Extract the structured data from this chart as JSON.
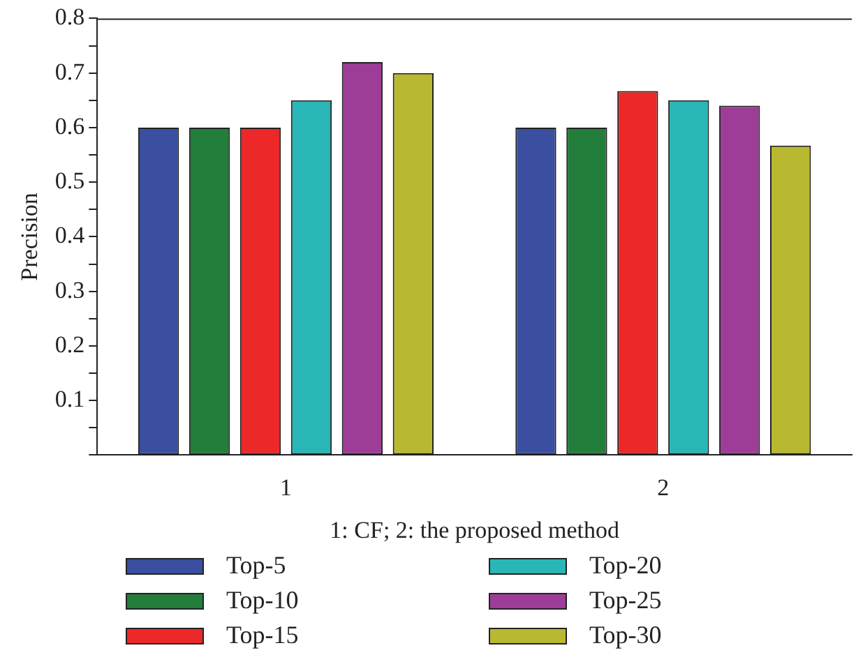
{
  "chart_data": {
    "type": "bar",
    "xlabel": "1: CF; 2: the proposed method",
    "ylabel": "Precision",
    "categories": [
      "1",
      "2"
    ],
    "series": [
      {
        "name": "Top-5",
        "color": "#3a4fa0",
        "values": [
          0.6,
          0.6
        ]
      },
      {
        "name": "Top-10",
        "color": "#237d3b",
        "values": [
          0.6,
          0.6
        ]
      },
      {
        "name": "Top-15",
        "color": "#ec2828",
        "values": [
          0.6,
          0.667
        ]
      },
      {
        "name": "Top-20",
        "color": "#29b6b6",
        "values": [
          0.65,
          0.65
        ]
      },
      {
        "name": "Top-25",
        "color": "#9e3d97",
        "values": [
          0.72,
          0.64
        ]
      },
      {
        "name": "Top-30",
        "color": "#b9b931",
        "values": [
          0.7,
          0.567
        ]
      }
    ],
    "ylim": [
      0,
      0.8
    ],
    "yticks": [
      {
        "value": 0,
        "label": null
      },
      {
        "value": 0.05,
        "label": null
      },
      0.1,
      {
        "value": 0.15,
        "label": null
      },
      0.2,
      {
        "value": 0.25,
        "label": null
      },
      0.3,
      {
        "value": 0.35,
        "label": null
      },
      0.4,
      {
        "value": 0.45,
        "label": null
      },
      0.5,
      {
        "value": 0.55,
        "label": null
      },
      0.6,
      {
        "value": 0.65,
        "label": null
      },
      0.7,
      {
        "value": 0.75,
        "label": null
      },
      0.8
    ],
    "grid": false,
    "legend": "bottom"
  }
}
